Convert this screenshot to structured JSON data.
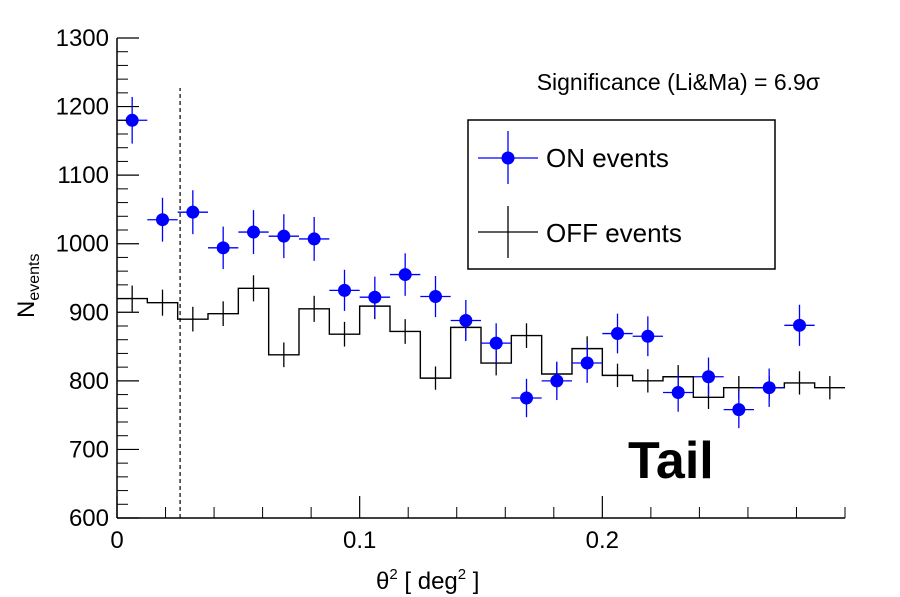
{
  "chart_data": {
    "type": "scatter",
    "xlabel": "θ",
    "xlabel_sup": "2",
    "xlabel_unit": "deg",
    "xlabel_unit_sup": "2",
    "ylabel": "N",
    "ylabel_sub": "events",
    "xlim": [
      0,
      0.3
    ],
    "ylim": [
      600,
      1300
    ],
    "x_ticks": [
      0,
      0.1,
      0.2
    ],
    "x_tick_labels": [
      "0",
      "0.1",
      "0.2"
    ],
    "y_ticks": [
      600,
      700,
      800,
      900,
      1000,
      1100,
      1200,
      1300
    ],
    "y_tick_labels": [
      "600",
      "700",
      "800",
      "900",
      "1000",
      "1100",
      "1200",
      "1300"
    ],
    "grid": false,
    "legend_position": "top-right",
    "annotation": "Significance (Li&Ma) = 6.9σ",
    "region_label": "Tail",
    "cut_line_x": 0.026,
    "bin_width": 0.0125,
    "series": [
      {
        "name": "ON events",
        "color": "#0000ff",
        "x": [
          0.00625,
          0.01875,
          0.03125,
          0.04375,
          0.05625,
          0.06875,
          0.08125,
          0.09375,
          0.10625,
          0.11875,
          0.13125,
          0.14375,
          0.15625,
          0.16875,
          0.18125,
          0.19375,
          0.20625,
          0.21875,
          0.23125,
          0.24375,
          0.25625,
          0.26875,
          0.28125
        ],
        "y": [
          1180,
          1035,
          1046,
          994,
          1017,
          1011,
          1007,
          932,
          922,
          955,
          923,
          888,
          855,
          775,
          800,
          826,
          869,
          865,
          783,
          806,
          758,
          790,
          881
        ],
        "err": [
          34,
          32,
          32,
          31,
          32,
          32,
          32,
          30,
          30,
          31,
          30,
          30,
          29,
          28,
          28,
          29,
          29,
          29,
          28,
          28,
          27,
          28,
          30
        ]
      },
      {
        "name": "OFF events",
        "color": "#000000",
        "x": [
          0.00625,
          0.01875,
          0.03125,
          0.04375,
          0.05625,
          0.06875,
          0.08125,
          0.09375,
          0.10625,
          0.11875,
          0.13125,
          0.14375,
          0.15625,
          0.16875,
          0.18125,
          0.19375,
          0.20625,
          0.21875,
          0.23125,
          0.24375,
          0.25625,
          0.26875,
          0.28125,
          0.29375
        ],
        "y": [
          920,
          914,
          890,
          898,
          935,
          838,
          905,
          868,
          909,
          872,
          804,
          878,
          826,
          866,
          810,
          847,
          808,
          800,
          806,
          776,
          790,
          790,
          797,
          790
        ],
        "err": [
          19,
          19,
          18,
          18,
          19,
          18,
          19,
          18,
          19,
          18,
          17,
          18,
          18,
          18,
          17,
          18,
          17,
          17,
          17,
          17,
          17,
          17,
          17,
          17
        ]
      }
    ]
  }
}
